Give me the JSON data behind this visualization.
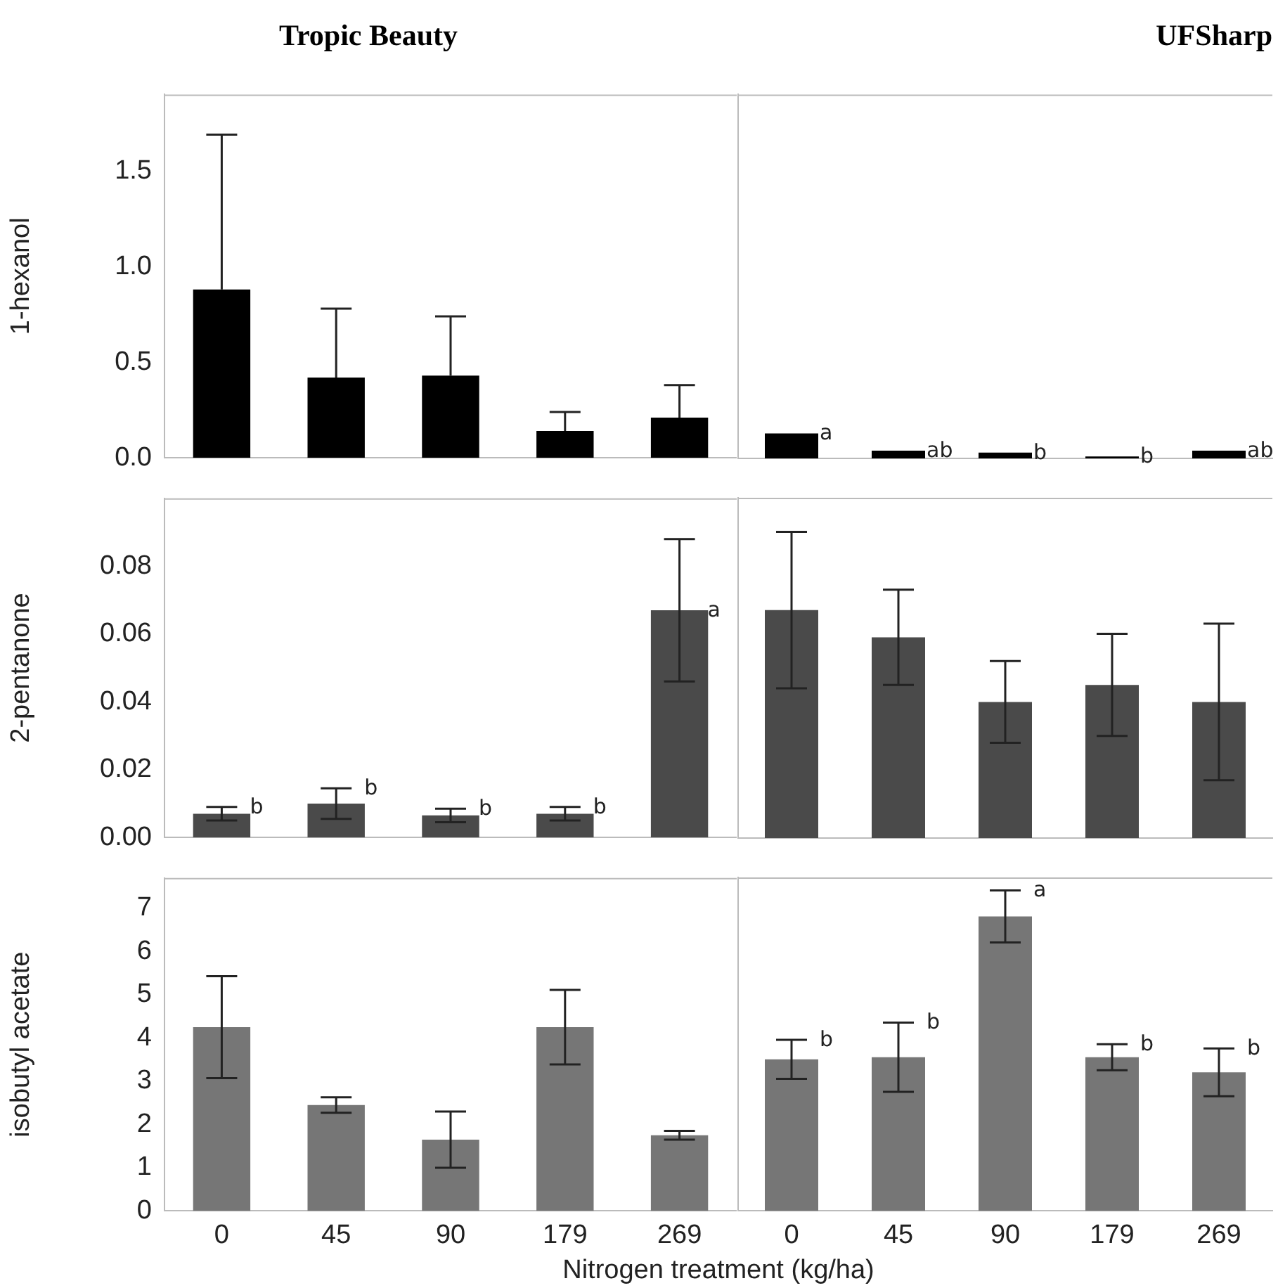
{
  "chart_data": [
    {
      "type": "bar",
      "title": "Tropic Beauty",
      "ylabel": "1-hexanol",
      "categories": [
        "0",
        "45",
        "90",
        "179",
        "269"
      ],
      "color": "#000000",
      "values": [
        0.88,
        0.42,
        0.43,
        0.14,
        0.21
      ],
      "errors": [
        [
          0.88,
          1.69
        ],
        [
          0.42,
          0.78
        ],
        [
          0.43,
          0.74
        ],
        [
          0.14,
          0.24
        ],
        [
          0.21,
          0.38
        ]
      ],
      "ylim": [
        0,
        1.9
      ],
      "yticks": [
        {
          "value": 0,
          "label": "0.0"
        },
        {
          "value": 0.5,
          "label": "0.5"
        },
        {
          "value": 1,
          "label": "1.0"
        },
        {
          "value": 1.5,
          "label": "1.5"
        }
      ],
      "tick_labels": "y"
    },
    {
      "type": "bar",
      "title": "UFSharp",
      "categories": [
        "0",
        "45",
        "90",
        "179",
        "269"
      ],
      "color": "#000000",
      "values": [
        0.13,
        0.04,
        0.03,
        0.01,
        0.04
      ],
      "ylim": [
        0,
        1.9
      ],
      "tick_labels": false,
      "annotations": [
        {
          "text": "a",
          "x": "0",
          "y": 0.13
        },
        {
          "text": "ab",
          "x": "45",
          "y": 0.04
        },
        {
          "text": "b",
          "x": "90",
          "y": 0.03
        },
        {
          "text": "b",
          "x": "179",
          "y": 0.01
        },
        {
          "text": "ab",
          "x": "269",
          "y": 0.04
        }
      ]
    },
    {
      "type": "bar",
      "ylabel": "2-pentanone",
      "categories": [
        "0",
        "45",
        "90",
        "179",
        "269"
      ],
      "color": "#4a4a4a",
      "values": [
        0.007,
        0.01,
        0.0065,
        0.007,
        0.067
      ],
      "errors": [
        0.002,
        0.0045,
        0.002,
        0.002,
        0.021
      ],
      "ylim": [
        0,
        0.1
      ],
      "yticks": [
        {
          "value": 0,
          "label": "0.00"
        },
        {
          "value": 0.02,
          "label": "0.02"
        },
        {
          "value": 0.04,
          "label": "0.04"
        },
        {
          "value": 0.06,
          "label": "0.06"
        },
        {
          "value": 0.08,
          "label": "0.08"
        }
      ],
      "tick_labels": "y",
      "annotations": [
        {
          "text": "b",
          "x": "0",
          "y": 0.009
        },
        {
          "text": "b",
          "x": "45",
          "y": 0.0145
        },
        {
          "text": "b",
          "x": "90",
          "y": 0.0085
        },
        {
          "text": "b",
          "x": "179",
          "y": 0.009
        },
        {
          "text": "a",
          "x": "269",
          "y": 0.067
        }
      ]
    },
    {
      "type": "bar",
      "categories": [
        "0",
        "45",
        "90",
        "179",
        "269"
      ],
      "color": "#4a4a4a",
      "values": [
        0.067,
        0.059,
        0.04,
        0.045,
        0.04
      ],
      "errors": [
        0.023,
        0.014,
        0.012,
        0.015,
        0.023
      ],
      "ylim": [
        0,
        0.1
      ],
      "tick_labels": false
    },
    {
      "type": "bar",
      "ylabel": "isobutyl acetate",
      "xlabel": "Nitrogen treatment (kg/ha)",
      "categories": [
        "0",
        "45",
        "90",
        "179",
        "269"
      ],
      "color": "#767676",
      "values": [
        4.25,
        2.45,
        1.65,
        4.25,
        1.75
      ],
      "errors": [
        1.18,
        0.18,
        0.65,
        0.86,
        0.1
      ],
      "ylim": [
        0,
        7.7
      ],
      "yticks": [
        0,
        1,
        2,
        3,
        4,
        5,
        6,
        7
      ]
    },
    {
      "type": "bar",
      "categories": [
        "0",
        "45",
        "90",
        "179",
        "269"
      ],
      "color": "#767676",
      "values": [
        3.5,
        3.55,
        6.8,
        3.55,
        3.2
      ],
      "errors": [
        0.45,
        0.8,
        0.6,
        0.3,
        0.55
      ],
      "ylim": [
        0,
        7.7
      ],
      "tick_labels": "x",
      "annotations": [
        {
          "text": "b",
          "x": "0",
          "y": 3.95
        },
        {
          "text": "b",
          "x": "45",
          "y": 4.35
        },
        {
          "text": "a",
          "x": "90",
          "y": 7.4
        },
        {
          "text": "b",
          "x": "179",
          "y": 3.85
        },
        {
          "text": "b",
          "x": "269",
          "y": 3.75
        }
      ]
    }
  ]
}
